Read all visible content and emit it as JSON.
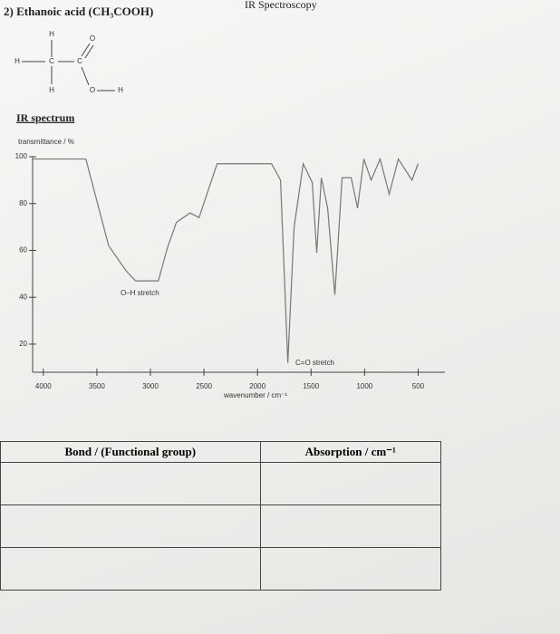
{
  "header": {
    "title": "2) Ethanoic acid (CH₃COOH)",
    "topic": "IR Spectroscopy",
    "section": "IR spectrum"
  },
  "structure": {
    "atoms": [
      "H",
      "H",
      "C",
      "C",
      "O",
      "H",
      "O",
      "H"
    ]
  },
  "chart_data": {
    "type": "line",
    "ylabel": "transmittance / %",
    "xlabel": "wavenumber / cm⁻¹",
    "x": [
      4100,
      3603,
      3390,
      3222,
      3138,
      2926,
      2842,
      2757,
      2630,
      2546,
      2377,
      1869,
      1785,
      1717,
      1658,
      1573,
      1489,
      1447,
      1404,
      1345,
      1278,
      1210,
      1125,
      1066,
      1007,
      939,
      855,
      770,
      685,
      558,
      500
    ],
    "values": [
      99,
      99,
      62,
      51,
      47,
      47,
      61,
      72,
      76,
      74,
      97,
      97,
      90,
      12,
      70,
      97,
      89,
      59,
      91,
      78,
      41,
      91,
      91,
      78,
      99,
      90,
      99,
      84,
      99,
      90,
      97
    ],
    "color": "#777777",
    "xlim": [
      4100,
      250
    ],
    "ylim": [
      8,
      100
    ],
    "xticks": [
      4000,
      3500,
      3000,
      2500,
      2000,
      1500,
      1000,
      500
    ],
    "yticks": [
      20,
      40,
      60,
      80,
      100
    ],
    "grid": false,
    "annotations": [
      "O–H stretch",
      "C=O stretch"
    ]
  },
  "table": {
    "headers": [
      "Bond / (Functional group)",
      "Absorption / cm⁻¹"
    ]
  }
}
